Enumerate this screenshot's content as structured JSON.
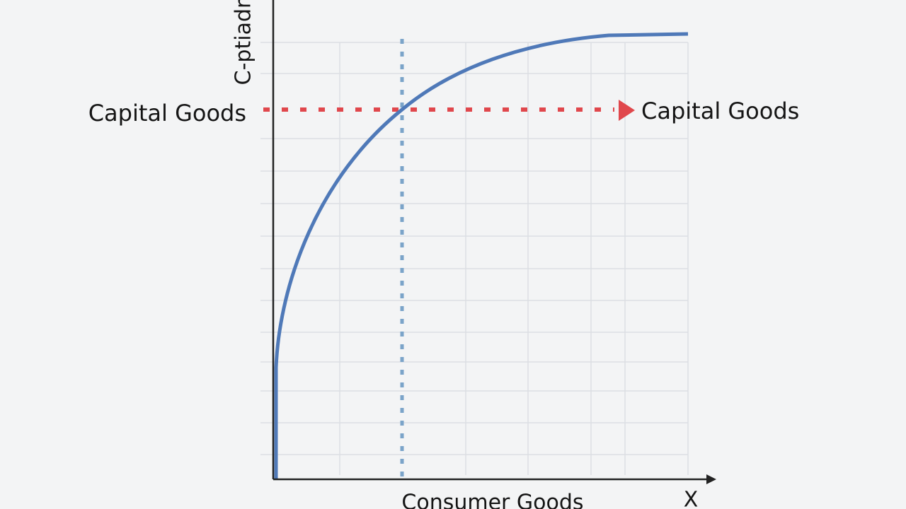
{
  "axes": {
    "y_label": "C-ptiadr",
    "x_label": "Consumer Goods",
    "x_end": "X"
  },
  "annotations": {
    "left": "Capital Goods",
    "right": "Capital Goods"
  }
}
